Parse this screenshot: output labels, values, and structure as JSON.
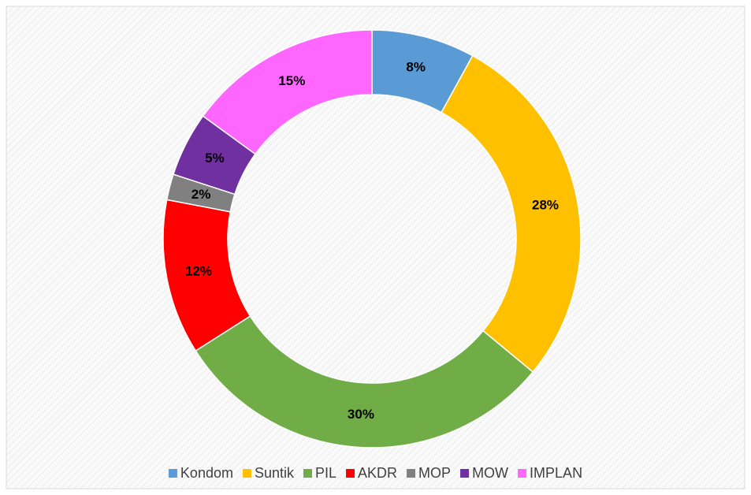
{
  "chart_data": {
    "type": "donut",
    "categories": [
      "Kondom",
      "Suntik",
      "PIL",
      "AKDR",
      "MOP",
      "MOW",
      "IMPLAN"
    ],
    "values": [
      8,
      28,
      30,
      12,
      2,
      5,
      15
    ],
    "value_labels": [
      "8%",
      "28%",
      "30%",
      "12%",
      "2%",
      "5%",
      "15%"
    ],
    "colors": [
      "#5b9bd5",
      "#ffc000",
      "#70ad47",
      "#ff0000",
      "#808080",
      "#7030a0",
      "#ff66ff"
    ],
    "legend": "bottom"
  }
}
